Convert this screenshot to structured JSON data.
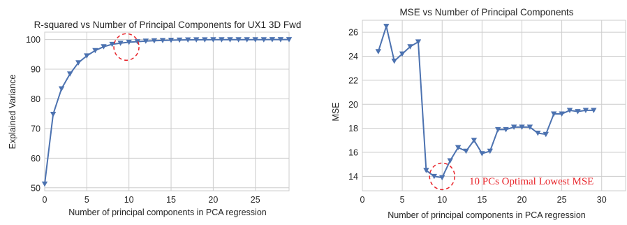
{
  "chart_data": [
    {
      "type": "line",
      "title": "R-squared vs Number of Principal Components for UX1 3D Fwd",
      "xlabel": "Number of principal components in PCA regression",
      "ylabel": "Explained Variance",
      "xlim": [
        0,
        29
      ],
      "ylim": [
        49,
        102.5
      ],
      "xticks": [
        0,
        5,
        10,
        15,
        20,
        25
      ],
      "yticks": [
        50,
        60,
        70,
        80,
        90,
        100
      ],
      "grid": true,
      "marker": "triangle-down",
      "colors": {
        "line": "#4c72b0",
        "highlight": "#e8242a",
        "grid": "#cccccc"
      },
      "highlight_circle": {
        "x": 9.7,
        "y": 97.5
      },
      "series": [
        {
          "x": [
            0,
            1,
            2,
            3,
            4,
            5,
            6,
            7,
            8,
            9,
            10,
            11,
            12,
            13,
            14,
            15,
            16,
            17,
            18,
            19,
            20,
            21,
            22,
            23,
            24,
            25,
            26,
            27,
            28,
            29
          ],
          "values": [
            51.3,
            74.8,
            83.4,
            88.4,
            92.2,
            94.5,
            96.3,
            97.6,
            98.4,
            98.8,
            99.1,
            99.3,
            99.5,
            99.6,
            99.7,
            99.8,
            99.85,
            99.9,
            99.92,
            99.94,
            99.95,
            99.96,
            99.97,
            99.97,
            99.98,
            99.98,
            99.98,
            99.99,
            99.99,
            99.99
          ]
        }
      ]
    },
    {
      "type": "line",
      "title": "MSE vs Number of Principal Components",
      "xlabel": "Number of principal components in PCA regression",
      "ylabel": "MSE",
      "xlim": [
        0,
        33
      ],
      "ylim": [
        12.8,
        27
      ],
      "xticks": [
        0,
        5,
        10,
        15,
        20,
        25,
        30
      ],
      "yticks": [
        14,
        16,
        18,
        20,
        22,
        24,
        26
      ],
      "grid": true,
      "marker": "triangle-down",
      "colors": {
        "line": "#4c72b0",
        "highlight": "#e8242a",
        "grid": "#cccccc"
      },
      "highlight_circle": {
        "x": 10,
        "y": 14.0
      },
      "annotation": "10 PCs Optimal Lowest MSE",
      "series": [
        {
          "x": [
            2,
            3,
            4,
            5,
            6,
            7,
            8,
            9,
            10,
            11,
            12,
            13,
            14,
            15,
            16,
            17,
            18,
            19,
            20,
            21,
            22,
            23,
            24,
            25,
            26,
            27,
            28,
            29
          ],
          "values": [
            24.4,
            26.5,
            23.6,
            24.2,
            24.8,
            25.2,
            14.5,
            14.0,
            13.9,
            15.3,
            16.4,
            16.1,
            17.0,
            15.9,
            16.1,
            17.9,
            17.9,
            18.1,
            18.1,
            18.1,
            17.6,
            17.5,
            19.2,
            19.2,
            19.5,
            19.4,
            19.5,
            19.5
          ]
        }
      ]
    }
  ]
}
